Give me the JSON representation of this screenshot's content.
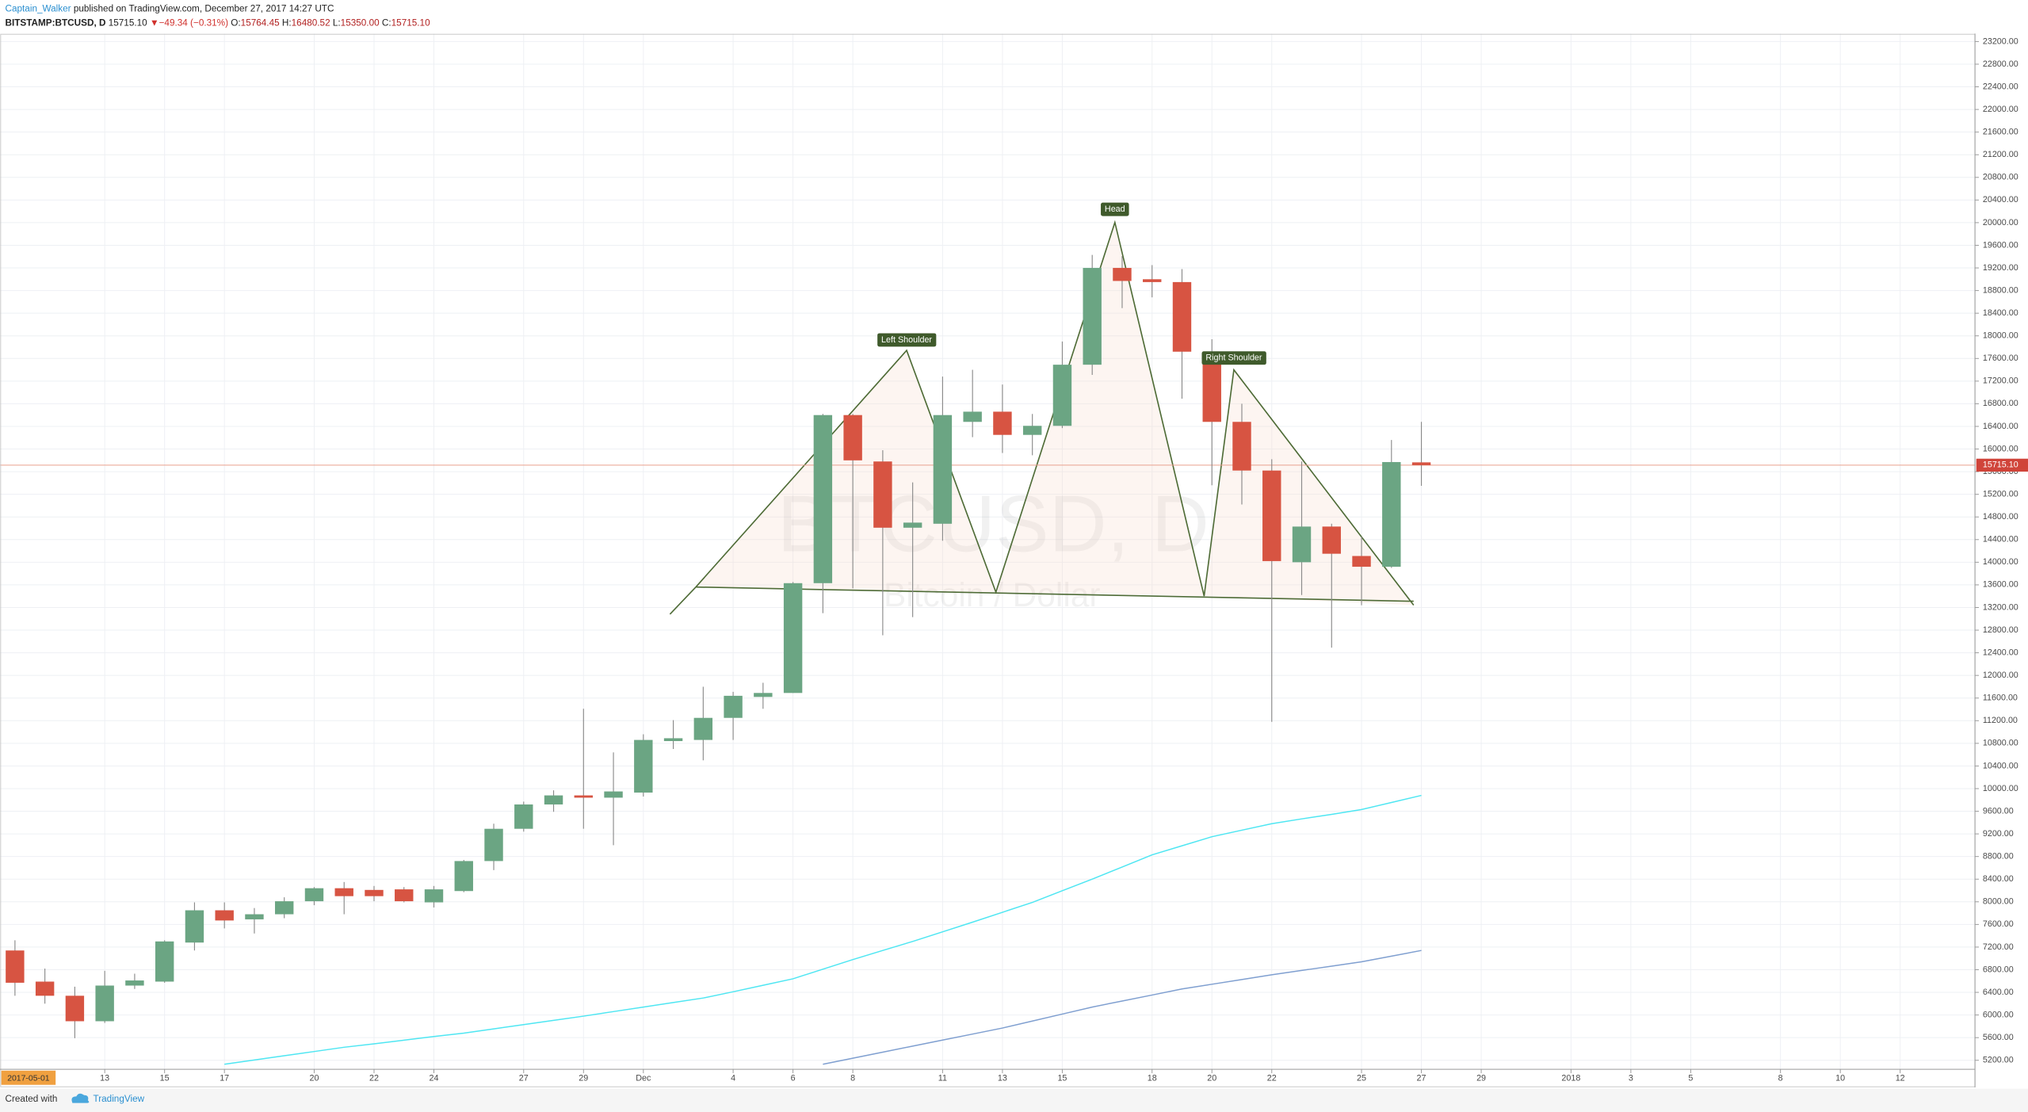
{
  "header": {
    "author": "Captain_Walker",
    "published": "published on TradingView.com, December 27, 2017 14:27 UTC",
    "symbol": "BITSTAMP:BTCUSD, D",
    "last": "15715.10",
    "arrow": "▼",
    "change": "−49.34 (−0.31%)",
    "o_label": "O:",
    "o": "15764.45",
    "h_label": "H:",
    "h": "16480.52",
    "l_label": "L:",
    "l": "15350.00",
    "c_label": "C:",
    "c": "15715.10"
  },
  "footer": {
    "created": "Created with",
    "brand": "TradingView"
  },
  "chart_data": {
    "type": "candlestick",
    "watermark_symbol": "BTCUSD, D",
    "watermark_name": "Bitcoin / Dollar",
    "cursor_date": "2017-05-01",
    "annotations": [
      "Left Shoulder",
      "Head",
      "Right Shoulder"
    ],
    "up_color": "#6ba583",
    "down_color": "#d75442",
    "wick_color": "#8a8a8a",
    "grid": true,
    "categories": [
      null,
      null,
      null,
      "13",
      null,
      "15",
      null,
      "17",
      null,
      null,
      "20",
      null,
      "22",
      null,
      "24",
      null,
      null,
      "27",
      null,
      "29",
      null,
      "Dec",
      null,
      null,
      "4",
      null,
      "6",
      null,
      "8",
      null,
      null,
      "11",
      null,
      "13",
      null,
      "15",
      null,
      null,
      "18",
      null,
      "20",
      null,
      "22",
      null,
      null,
      "25",
      null,
      "27",
      null,
      "29",
      null,
      null,
      "2018",
      null,
      "3",
      null,
      "5",
      null,
      null,
      "8",
      null,
      "10",
      null,
      "12",
      null,
      null
    ],
    "open": [
      7140,
      6590,
      6340,
      5890,
      6520,
      6590,
      7280,
      7850,
      7690,
      7780,
      8010,
      8240,
      8210,
      8220,
      7990,
      8190,
      8720,
      9290,
      9720,
      9880,
      9840,
      9930,
      10840,
      10860,
      11250,
      11620,
      11690,
      13630,
      16600,
      15780,
      14610,
      14680,
      16480,
      16660,
      16250,
      16410,
      17490,
      19200,
      19000,
      18950,
      17510,
      16480,
      15620,
      14000,
      14630,
      14110,
      13920,
      15764.45,
      null,
      null,
      null,
      null,
      null,
      null,
      null,
      null,
      null,
      null,
      null,
      null,
      null,
      null,
      null,
      null,
      null,
      null
    ],
    "high": [
      7320,
      6820,
      6500,
      6780,
      6730,
      7320,
      7990,
      7990,
      7890,
      8080,
      8260,
      8350,
      8280,
      8260,
      8280,
      8740,
      9380,
      9770,
      9970,
      11410,
      10640,
      10960,
      11210,
      11800,
      11710,
      11870,
      13650,
      16620,
      16620,
      15980,
      15410,
      17280,
      17400,
      17140,
      16620,
      17900,
      19430,
      19410,
      19250,
      19180,
      17940,
      16800,
      15820,
      15780,
      14680,
      14450,
      16160,
      16480.52,
      null,
      null,
      null,
      null,
      null,
      null,
      null,
      null,
      null,
      null,
      null,
      null,
      null,
      null,
      null,
      null,
      null,
      null
    ],
    "low": [
      6340,
      6200,
      5590,
      5860,
      6460,
      6570,
      7140,
      7530,
      7440,
      7710,
      7940,
      7780,
      8010,
      7990,
      7900,
      8170,
      8560,
      9240,
      9590,
      9290,
      9000,
      9860,
      10700,
      10500,
      10860,
      11410,
      11690,
      13100,
      13540,
      12710,
      13030,
      14380,
      16210,
      15930,
      15890,
      16370,
      17310,
      18490,
      18680,
      16890,
      15360,
      15020,
      11180,
      13420,
      12490,
      13240,
      13900,
      15350,
      null,
      null,
      null,
      null,
      null,
      null,
      null,
      null,
      null,
      null,
      null,
      null,
      null,
      null,
      null,
      null,
      null,
      null
    ],
    "close": [
      6570,
      6340,
      5890,
      6520,
      6610,
      7300,
      7850,
      7670,
      7780,
      8010,
      8240,
      8100,
      8100,
      8010,
      8220,
      8720,
      9290,
      9720,
      9880,
      9840,
      9950,
      10860,
      10890,
      11250,
      11640,
      11690,
      13630,
      16600,
      15800,
      14610,
      14700,
      16600,
      16660,
      16250,
      16410,
      17490,
      19200,
      18970,
      18950,
      17720,
      16480,
      15620,
      14020,
      14630,
      14150,
      13920,
      15770,
      15715.1,
      null,
      null,
      null,
      null,
      null,
      null,
      null,
      null,
      null,
      null,
      null,
      null,
      null,
      null,
      null,
      null,
      null,
      null
    ],
    "series": [
      {
        "color": "#4ee6f2",
        "values": [
          null,
          null,
          null,
          null,
          null,
          null,
          null,
          5130,
          5205,
          5280,
          5355,
          5430,
          5490,
          5555,
          5620,
          5680,
          5755,
          5830,
          5905,
          5980,
          6060,
          6140,
          6220,
          6300,
          6410,
          6525,
          6640,
          6810,
          6980,
          7140,
          7300,
          7470,
          7640,
          7815,
          7990,
          8195,
          8400,
          8615,
          8830,
          8990,
          9150,
          9265,
          9380,
          9465,
          9545,
          9630,
          9755,
          9880,
          null,
          null,
          null,
          null,
          null,
          null,
          null,
          null,
          null,
          null,
          null,
          null,
          null,
          null,
          null,
          null,
          null,
          null
        ]
      },
      {
        "color": "#7f9fd0",
        "values": [
          null,
          null,
          null,
          null,
          null,
          null,
          null,
          null,
          null,
          null,
          null,
          null,
          null,
          null,
          null,
          null,
          null,
          null,
          null,
          null,
          null,
          null,
          null,
          null,
          null,
          null,
          null,
          5130,
          5237,
          5343,
          5450,
          5557,
          5663,
          5770,
          5893,
          6017,
          6140,
          6247,
          6353,
          6460,
          6543,
          6627,
          6710,
          6787,
          6863,
          6940,
          7040,
          7140,
          null,
          null,
          null,
          null,
          null,
          null,
          null,
          null,
          null,
          null,
          null,
          null,
          null,
          null,
          null,
          null,
          null,
          null
        ]
      }
    ],
    "last_price": {
      "value": 15715.1,
      "label": "15715.10"
    },
    "ylim": [
      5040,
      23340
    ],
    "yticks": [
      {
        "value": 5200,
        "label": "5200.00"
      },
      {
        "value": 5600,
        "label": "5600.00"
      },
      {
        "value": 6000,
        "label": "6000.00"
      },
      {
        "value": 6400,
        "label": "6400.00"
      },
      {
        "value": 6800,
        "label": "6800.00"
      },
      {
        "value": 7200,
        "label": "7200.00"
      },
      {
        "value": 7600,
        "label": "7600.00"
      },
      {
        "value": 8000,
        "label": "8000.00"
      },
      {
        "value": 8400,
        "label": "8400.00"
      },
      {
        "value": 8800,
        "label": "8800.00"
      },
      {
        "value": 9200,
        "label": "9200.00"
      },
      {
        "value": 9600,
        "label": "9600.00"
      },
      {
        "value": 10000,
        "label": "10000.00"
      },
      {
        "value": 10400,
        "label": "10400.00"
      },
      {
        "value": 10800,
        "label": "10800.00"
      },
      {
        "value": 11200,
        "label": "11200.00"
      },
      {
        "value": 11600,
        "label": "11600.00"
      },
      {
        "value": 12000,
        "label": "12000.00"
      },
      {
        "value": 12400,
        "label": "12400.00"
      },
      {
        "value": 12800,
        "label": "12800.00"
      },
      {
        "value": 13200,
        "label": "13200.00"
      },
      {
        "value": 13600,
        "label": "13600.00"
      },
      {
        "value": 14000,
        "label": "14000.00"
      },
      {
        "value": 14400,
        "label": "14400.00"
      },
      {
        "value": 14800,
        "label": "14800.00"
      },
      {
        "value": 15200,
        "label": "15200.00"
      },
      {
        "value": 15600,
        "label": "15600.00"
      },
      {
        "value": 16000,
        "label": "16000.00"
      },
      {
        "value": 16400,
        "label": "16400.00"
      },
      {
        "value": 16800,
        "label": "16800.00"
      },
      {
        "value": 17200,
        "label": "17200.00"
      },
      {
        "value": 17600,
        "label": "17600.00"
      },
      {
        "value": 18000,
        "label": "18000.00"
      },
      {
        "value": 18400,
        "label": "18400.00"
      },
      {
        "value": 18800,
        "label": "18800.00"
      },
      {
        "value": 19200,
        "label": "19200.00"
      },
      {
        "value": 19600,
        "label": "19600.00"
      },
      {
        "value": 20000,
        "label": "20000.00"
      },
      {
        "value": 20400,
        "label": "20400.00"
      },
      {
        "value": 20800,
        "label": "20800.00"
      },
      {
        "value": 21200,
        "label": "21200.00"
      },
      {
        "value": 21600,
        "label": "21600.00"
      },
      {
        "value": 22000,
        "label": "22000.00"
      },
      {
        "value": 22400,
        "label": "22400.00"
      },
      {
        "value": 22800,
        "label": "22800.00"
      },
      {
        "value": 23200,
        "label": "23200.00"
      }
    ]
  }
}
